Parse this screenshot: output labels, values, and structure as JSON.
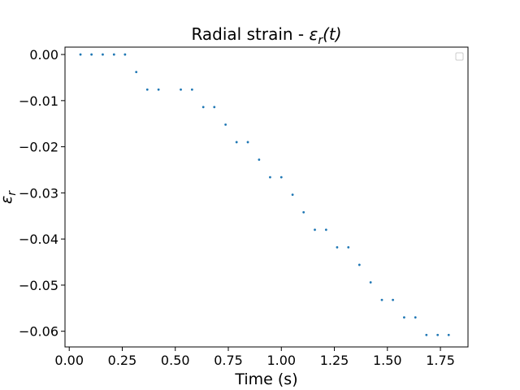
{
  "chart_data": {
    "type": "scatter",
    "title_prefix": "Radial strain - ",
    "title_math_symbol": "ε",
    "title_math_subscript": "r",
    "title_math_suffix": "(t)",
    "xlabel": "Time (s)",
    "ylabel_symbol": "ε",
    "ylabel_subscript": "r",
    "xlim": [
      -0.02,
      1.88
    ],
    "ylim": [
      -0.0634,
      0.0016
    ],
    "x_ticks": [
      0.0,
      0.25,
      0.5,
      0.75,
      1.0,
      1.25,
      1.5,
      1.75
    ],
    "x_tick_labels": [
      "0.00",
      "0.25",
      "0.50",
      "0.75",
      "1.00",
      "1.25",
      "1.50",
      "1.75"
    ],
    "y_ticks": [
      0.0,
      -0.01,
      -0.02,
      -0.03,
      -0.04,
      -0.05,
      -0.06
    ],
    "y_tick_labels": [
      "0.00",
      "−0.01",
      "−0.02",
      "−0.03",
      "−0.04",
      "−0.05",
      "−0.06"
    ],
    "grid": false,
    "legend": "top-right",
    "series": [
      {
        "color": "#1f77b4",
        "x": [
          0.053,
          0.105,
          0.158,
          0.211,
          0.263,
          0.316,
          0.368,
          0.421,
          0.526,
          0.579,
          0.632,
          0.684,
          0.737,
          0.789,
          0.842,
          0.895,
          0.947,
          1.0,
          1.053,
          1.105,
          1.158,
          1.211,
          1.263,
          1.316,
          1.368,
          1.421,
          1.474,
          1.526,
          1.579,
          1.632,
          1.684,
          1.737,
          1.789
        ],
        "y": [
          0.0,
          0.0,
          0.0,
          0.0,
          0.0,
          -0.0038,
          -0.0076,
          -0.0076,
          -0.0076,
          -0.0076,
          -0.0114,
          -0.0114,
          -0.0152,
          -0.019,
          -0.019,
          -0.0228,
          -0.0266,
          -0.0266,
          -0.0304,
          -0.0342,
          -0.038,
          -0.038,
          -0.0418,
          -0.0418,
          -0.0456,
          -0.0494,
          -0.0532,
          -0.0532,
          -0.057,
          -0.057,
          -0.0608,
          -0.0608,
          -0.0608
        ]
      }
    ]
  }
}
